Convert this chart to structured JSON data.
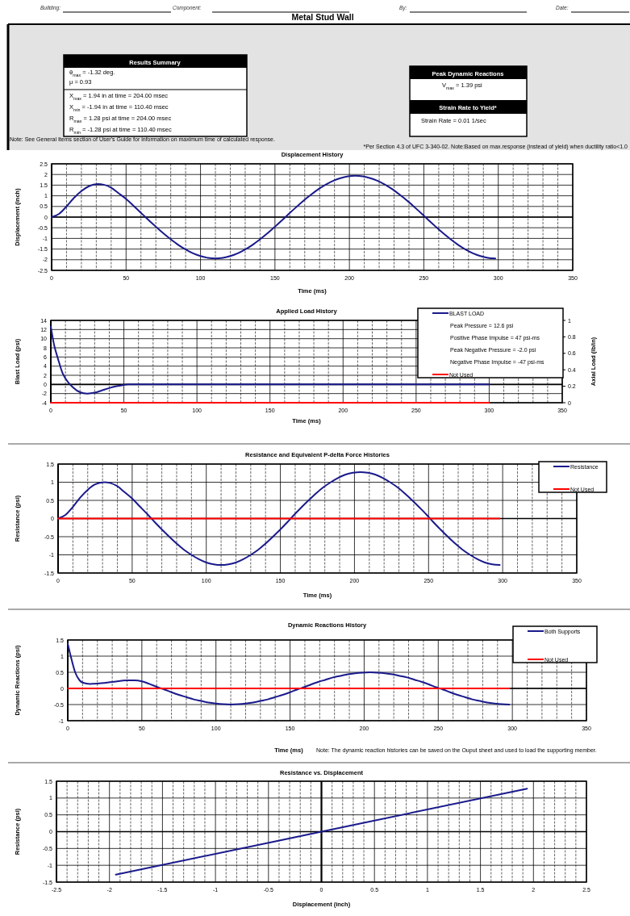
{
  "chart_data": [
    {
      "type": "other",
      "title": "Metal Stud Wall",
      "annotations": [
        "Building:",
        "Component:",
        "By:",
        "Date:",
        "Results Summary",
        "θ$_{max}$ = -1.32 deg.",
        "μ = 0.93",
        "X$_{max}$ = 1.94 in at time = 204.00 msec",
        "X$_{min}$ = -1.94 in at time = 110.40 msec",
        "R$_{max}$ = 1.28 psi at time = 204.00 msec",
        "R$_{min}$ = -1.28 psi at time = 110.40 msec",
        "Peak Dynamic Reactions",
        "V$_{max}$ = 1.39 psi",
        "Strain Rate to Yield*",
        "Strain Rate = 0.01 1/sec",
        "Note: See General Items section of User's Guide for information on maximum time of calculated response.",
        "*Per Section 4.3 of UFC 3-340-02. Note:Based on max.response (instead of yield) when ductility ratio<1.0"
      ]
    },
    {
      "type": "line",
      "title": "Displacement History",
      "xlabel": "Time (ms)",
      "ylabel": "Displacement (inch)",
      "xlim": [
        0,
        350
      ],
      "ylim": [
        -2.5,
        2.5
      ],
      "yticks": [
        -2.5,
        -2,
        -1.5,
        -1,
        -0.5,
        0,
        0.5,
        1,
        1.5,
        2,
        2.5
      ],
      "grid": true,
      "xticks": [
        0,
        {
          "value": 10,
          "label": null
        },
        {
          "value": 20,
          "label": null
        },
        {
          "value": 30,
          "label": null
        },
        {
          "value": 40,
          "label": null
        },
        50,
        {
          "value": 60,
          "label": null
        },
        {
          "value": 70,
          "label": null
        },
        {
          "value": 80,
          "label": null
        },
        {
          "value": 90,
          "label": null
        },
        100,
        {
          "value": 110,
          "label": null
        },
        {
          "value": 120,
          "label": null
        },
        {
          "value": 130,
          "label": null
        },
        {
          "value": 140,
          "label": null
        },
        150,
        {
          "value": 160,
          "label": null
        },
        {
          "value": 170,
          "label": null
        },
        {
          "value": 180,
          "label": null
        },
        {
          "value": 190,
          "label": null
        },
        200,
        {
          "value": 210,
          "label": null
        },
        {
          "value": 220,
          "label": null
        },
        {
          "value": 230,
          "label": null
        },
        {
          "value": 240,
          "label": null
        },
        250,
        {
          "value": 260,
          "label": null
        },
        {
          "value": 270,
          "label": null
        },
        {
          "value": 280,
          "label": null
        },
        {
          "value": 290,
          "label": null
        },
        300,
        {
          "value": 310,
          "label": null
        },
        {
          "value": 320,
          "label": null
        },
        {
          "value": 330,
          "label": null
        },
        {
          "value": 340,
          "label": null
        },
        350
      ],
      "series": [
        {
          "color": "#1a1a8c",
          "x": [
            0,
            5,
            10,
            15,
            20,
            25,
            31,
            35,
            40,
            45,
            50,
            55,
            60,
            63,
            65,
            70,
            75,
            80,
            85,
            90,
            95,
            100,
            105,
            110,
            115,
            120,
            125,
            130,
            135,
            140,
            145,
            150,
            155,
            157,
            159,
            164,
            169,
            174,
            179,
            184,
            189,
            194,
            199,
            204,
            209,
            214,
            219,
            224,
            229,
            234,
            239,
            244,
            249,
            251,
            253,
            258,
            263,
            268,
            273,
            278,
            283,
            288,
            293,
            298
          ],
          "values": [
            0,
            0.15,
            0.5,
            0.9,
            1.22,
            1.45,
            1.55,
            1.52,
            1.38,
            1.12,
            0.85,
            0.53,
            0.2,
            0,
            -0.13,
            -0.45,
            -0.76,
            -1.04,
            -1.3,
            -1.52,
            -1.7,
            -1.83,
            -1.91,
            -1.94,
            -1.91,
            -1.83,
            -1.7,
            -1.52,
            -1.3,
            -1.04,
            -0.76,
            -0.45,
            -0.13,
            0,
            0.13,
            0.45,
            0.76,
            1.04,
            1.3,
            1.52,
            1.7,
            1.83,
            1.91,
            1.94,
            1.91,
            1.83,
            1.7,
            1.52,
            1.3,
            1.04,
            0.76,
            0.45,
            0.13,
            0,
            -0.13,
            -0.45,
            -0.76,
            -1.04,
            -1.3,
            -1.52,
            -1.7,
            -1.83,
            -1.91,
            -1.94
          ]
        }
      ]
    },
    {
      "type": "line",
      "title": "Applied Load History",
      "xlabel": "Time (ms)",
      "ylabel": "Blast Load (psi)",
      "y2label": "Axial Load (lb/in)",
      "xlim": [
        0,
        350
      ],
      "ylim": [
        -4,
        14
      ],
      "yticks": [
        -4,
        -2,
        0,
        2,
        4,
        6,
        8,
        10,
        12,
        14
      ],
      "y2lim": [
        0,
        1
      ],
      "y2ticks": [
        0,
        0.2,
        0.4,
        0.6,
        0.8,
        1
      ],
      "grid": true,
      "legend": "top right",
      "annotations": [
        "Peak Pressure = 12.6 psi",
        "Positive Phase Impulse = 47 psi-ms",
        "Peak Negative Pressure = -2.0 psi",
        "Negative Phase Impulse = -47 psi-ms"
      ],
      "xticks": [
        0,
        {
          "value": 10,
          "label": null
        },
        {
          "value": 20,
          "label": null
        },
        {
          "value": 30,
          "label": null
        },
        {
          "value": 40,
          "label": null
        },
        50,
        {
          "value": 60,
          "label": null
        },
        {
          "value": 70,
          "label": null
        },
        {
          "value": 80,
          "label": null
        },
        {
          "value": 90,
          "label": null
        },
        100,
        {
          "value": 110,
          "label": null
        },
        {
          "value": 120,
          "label": null
        },
        {
          "value": 130,
          "label": null
        },
        {
          "value": 140,
          "label": null
        },
        150,
        {
          "value": 160,
          "label": null
        },
        {
          "value": 170,
          "label": null
        },
        {
          "value": 180,
          "label": null
        },
        {
          "value": 190,
          "label": null
        },
        200,
        {
          "value": 210,
          "label": null
        },
        {
          "value": 220,
          "label": null
        },
        {
          "value": 230,
          "label": null
        },
        {
          "value": 240,
          "label": null
        },
        250,
        {
          "value": 260,
          "label": null
        },
        {
          "value": 270,
          "label": null
        },
        {
          "value": 280,
          "label": null
        },
        {
          "value": 290,
          "label": null
        },
        300,
        {
          "value": 310,
          "label": null
        },
        {
          "value": 320,
          "label": null
        },
        {
          "value": 330,
          "label": null
        },
        {
          "value": 340,
          "label": null
        },
        350
      ],
      "series": [
        {
          "name": "BLAST LOAD",
          "color": "#1a1a8c",
          "x": [
            0,
            2,
            5,
            8,
            10,
            15,
            20,
            25,
            30,
            35,
            40,
            45,
            50,
            53,
            300
          ],
          "values": [
            12.6,
            9,
            5.5,
            2.5,
            1.3,
            -0.6,
            -1.7,
            -2,
            -1.8,
            -1.3,
            -0.8,
            -0.4,
            -0.1,
            0,
            0
          ]
        },
        {
          "name": "Not Used",
          "color": "#ff0000",
          "axis": "y2",
          "x": [
            0,
            300
          ],
          "values": [
            0,
            0
          ]
        }
      ]
    },
    {
      "type": "line",
      "title": "Resistance and Equivalent P-delta Force Histories",
      "xlabel": "Time (ms)",
      "ylabel": "Resistance (psi)",
      "xlim": [
        0,
        350
      ],
      "ylim": [
        -1.5,
        1.5
      ],
      "yticks": [
        -1.5,
        -1,
        -0.5,
        0,
        0.5,
        1,
        1.5
      ],
      "grid": true,
      "legend": "top right",
      "xticks": [
        0,
        {
          "value": 10,
          "label": null
        },
        {
          "value": 20,
          "label": null
        },
        {
          "value": 30,
          "label": null
        },
        {
          "value": 40,
          "label": null
        },
        50,
        {
          "value": 60,
          "label": null
        },
        {
          "value": 70,
          "label": null
        },
        {
          "value": 80,
          "label": null
        },
        {
          "value": 90,
          "label": null
        },
        100,
        {
          "value": 110,
          "label": null
        },
        {
          "value": 120,
          "label": null
        },
        {
          "value": 130,
          "label": null
        },
        {
          "value": 140,
          "label": null
        },
        150,
        {
          "value": 160,
          "label": null
        },
        {
          "value": 170,
          "label": null
        },
        {
          "value": 180,
          "label": null
        },
        {
          "value": 190,
          "label": null
        },
        200,
        {
          "value": 210,
          "label": null
        },
        {
          "value": 220,
          "label": null
        },
        {
          "value": 230,
          "label": null
        },
        {
          "value": 240,
          "label": null
        },
        250,
        {
          "value": 260,
          "label": null
        },
        {
          "value": 270,
          "label": null
        },
        {
          "value": 280,
          "label": null
        },
        {
          "value": 290,
          "label": null
        },
        300,
        {
          "value": 310,
          "label": null
        },
        {
          "value": 320,
          "label": null
        },
        {
          "value": 330,
          "label": null
        },
        {
          "value": 340,
          "label": null
        },
        350
      ],
      "series": [
        {
          "name": "Resistance",
          "color": "#1a1a8c",
          "x": [
            0,
            5,
            10,
            15,
            20,
            25,
            31,
            35,
            40,
            45,
            50,
            55,
            60,
            63,
            65,
            70,
            75,
            80,
            85,
            90,
            95,
            100,
            105,
            110,
            115,
            120,
            125,
            130,
            135,
            140,
            145,
            150,
            155,
            157,
            159,
            164,
            169,
            174,
            179,
            184,
            189,
            194,
            199,
            204,
            209,
            214,
            219,
            224,
            229,
            234,
            239,
            244,
            249,
            251,
            253,
            258,
            263,
            268,
            273,
            278,
            283,
            288,
            293,
            298
          ],
          "values": [
            0,
            0.1,
            0.32,
            0.58,
            0.79,
            0.94,
            1,
            0.98,
            0.89,
            0.72,
            0.55,
            0.34,
            0.13,
            0,
            -0.09,
            -0.3,
            -0.5,
            -0.69,
            -0.86,
            -1,
            -1.12,
            -1.21,
            -1.26,
            -1.28,
            -1.26,
            -1.21,
            -1.12,
            -1,
            -0.86,
            -0.69,
            -0.5,
            -0.3,
            -0.09,
            0,
            0.09,
            0.3,
            0.5,
            0.69,
            0.86,
            1,
            1.12,
            1.21,
            1.26,
            1.28,
            1.26,
            1.21,
            1.12,
            1,
            0.86,
            0.69,
            0.5,
            0.3,
            0.09,
            0,
            -0.09,
            -0.3,
            -0.5,
            -0.69,
            -0.86,
            -1,
            -1.12,
            -1.21,
            -1.26,
            -1.28
          ]
        },
        {
          "name": "Not Used",
          "color": "#ff0000",
          "x": [
            0,
            298
          ],
          "values": [
            0,
            0
          ]
        }
      ]
    },
    {
      "type": "line",
      "title": "Dynamic Reactions History",
      "xlabel": "Time (ms)",
      "ylabel": "Dynamic Reactions (psi)",
      "xlim": [
        0,
        350
      ],
      "ylim": [
        -1,
        1.5
      ],
      "yticks": [
        -1,
        -0.5,
        0,
        0.5,
        1,
        1.5
      ],
      "grid": true,
      "legend": "top right",
      "annotations": [
        "Note: The dynamic reaction histories can be saved on the Ouput sheet and used to load the supporting member."
      ],
      "xticks": [
        0,
        {
          "value": 10,
          "label": null
        },
        {
          "value": 20,
          "label": null
        },
        {
          "value": 30,
          "label": null
        },
        {
          "value": 40,
          "label": null
        },
        50,
        {
          "value": 60,
          "label": null
        },
        {
          "value": 70,
          "label": null
        },
        {
          "value": 80,
          "label": null
        },
        {
          "value": 90,
          "label": null
        },
        100,
        {
          "value": 110,
          "label": null
        },
        {
          "value": 120,
          "label": null
        },
        {
          "value": 130,
          "label": null
        },
        {
          "value": 140,
          "label": null
        },
        150,
        {
          "value": 160,
          "label": null
        },
        {
          "value": 170,
          "label": null
        },
        {
          "value": 180,
          "label": null
        },
        {
          "value": 190,
          "label": null
        },
        200,
        {
          "value": 210,
          "label": null
        },
        {
          "value": 220,
          "label": null
        },
        {
          "value": 230,
          "label": null
        },
        {
          "value": 240,
          "label": null
        },
        250,
        {
          "value": 260,
          "label": null
        },
        {
          "value": 270,
          "label": null
        },
        {
          "value": 280,
          "label": null
        },
        {
          "value": 290,
          "label": null
        },
        300,
        {
          "value": 310,
          "label": null
        },
        {
          "value": 320,
          "label": null
        },
        {
          "value": 330,
          "label": null
        },
        {
          "value": 340,
          "label": null
        },
        350
      ],
      "series": [
        {
          "name": "Both Supports",
          "color": "#1a1a8c",
          "x": [
            0,
            2,
            5,
            8,
            10,
            15,
            20,
            30,
            40,
            45,
            50,
            55,
            60,
            63,
            65,
            70,
            75,
            80,
            85,
            90,
            95,
            100,
            105,
            110,
            115,
            120,
            125,
            130,
            135,
            140,
            145,
            150,
            155,
            157,
            159,
            164,
            169,
            174,
            179,
            184,
            189,
            194,
            199,
            204,
            209,
            214,
            219,
            224,
            229,
            234,
            239,
            244,
            249,
            251,
            253,
            258,
            263,
            268,
            273,
            278,
            283,
            288,
            293,
            298
          ],
          "values": [
            1.39,
            1,
            0.5,
            0.25,
            0.18,
            0.14,
            0.15,
            0.2,
            0.25,
            0.25,
            0.22,
            0.14,
            0.05,
            0,
            -0.03,
            -0.12,
            -0.2,
            -0.27,
            -0.34,
            -0.39,
            -0.44,
            -0.47,
            -0.49,
            -0.5,
            -0.49,
            -0.47,
            -0.44,
            -0.39,
            -0.34,
            -0.27,
            -0.2,
            -0.12,
            -0.03,
            0,
            0.03,
            0.12,
            0.2,
            0.27,
            0.34,
            0.39,
            0.44,
            0.47,
            0.49,
            0.5,
            0.49,
            0.47,
            0.44,
            0.39,
            0.34,
            0.27,
            0.2,
            0.12,
            0.03,
            0,
            -0.03,
            -0.12,
            -0.2,
            -0.27,
            -0.34,
            -0.39,
            -0.44,
            -0.47,
            -0.49,
            -0.5
          ]
        },
        {
          "name": "Not Used",
          "color": "#ff0000",
          "x": [
            0,
            298
          ],
          "values": [
            0,
            0
          ]
        }
      ]
    },
    {
      "type": "line",
      "title": "Resistance vs. Displacement",
      "xlabel": "Displacement (inch)",
      "ylabel": "Resistance (psi)",
      "xlim": [
        -2.5,
        2.5
      ],
      "ylim": [
        -1.5,
        1.5
      ],
      "yticks": [
        -1.5,
        -1,
        -0.5,
        0,
        0.5,
        1,
        1.5
      ],
      "grid": true,
      "xticks": [
        -2.5,
        {
          "value": -2.4,
          "label": null
        },
        {
          "value": -2.3,
          "label": null
        },
        {
          "value": -2.2,
          "label": null
        },
        {
          "value": -2.1,
          "label": null
        },
        -2,
        {
          "value": -1.9,
          "label": null
        },
        {
          "value": -1.8,
          "label": null
        },
        {
          "value": -1.7,
          "label": null
        },
        {
          "value": -1.6,
          "label": null
        },
        -1.5,
        {
          "value": -1.4,
          "label": null
        },
        {
          "value": -1.3,
          "label": null
        },
        {
          "value": -1.2,
          "label": null
        },
        {
          "value": -1.1,
          "label": null
        },
        -1,
        {
          "value": -0.9,
          "label": null
        },
        {
          "value": -0.8,
          "label": null
        },
        {
          "value": -0.7,
          "label": null
        },
        {
          "value": -0.6,
          "label": null
        },
        -0.5,
        {
          "value": -0.4,
          "label": null
        },
        {
          "value": -0.3,
          "label": null
        },
        {
          "value": -0.2,
          "label": null
        },
        {
          "value": -0.1,
          "label": null
        },
        0,
        {
          "value": 0.1,
          "label": null
        },
        {
          "value": 0.2,
          "label": null
        },
        {
          "value": 0.3,
          "label": null
        },
        {
          "value": 0.4,
          "label": null
        },
        0.5,
        {
          "value": 0.6,
          "label": null
        },
        {
          "value": 0.7,
          "label": null
        },
        {
          "value": 0.8,
          "label": null
        },
        {
          "value": 0.9,
          "label": null
        },
        1,
        {
          "value": 1.1,
          "label": null
        },
        {
          "value": 1.2,
          "label": null
        },
        {
          "value": 1.3,
          "label": null
        },
        {
          "value": 1.4,
          "label": null
        },
        1.5,
        {
          "value": 1.6,
          "label": null
        },
        {
          "value": 1.7,
          "label": null
        },
        {
          "value": 1.8,
          "label": null
        },
        {
          "value": 1.9,
          "label": null
        },
        2,
        {
          "value": 2.1,
          "label": null
        },
        {
          "value": 2.2,
          "label": null
        },
        {
          "value": 2.3,
          "label": null
        },
        {
          "value": 2.4,
          "label": null
        },
        2.5
      ],
      "series": [
        {
          "color": "#1a1a8c",
          "x": [
            -1.94,
            0,
            1.94
          ],
          "values": [
            -1.28,
            0,
            1.28
          ]
        }
      ]
    }
  ]
}
